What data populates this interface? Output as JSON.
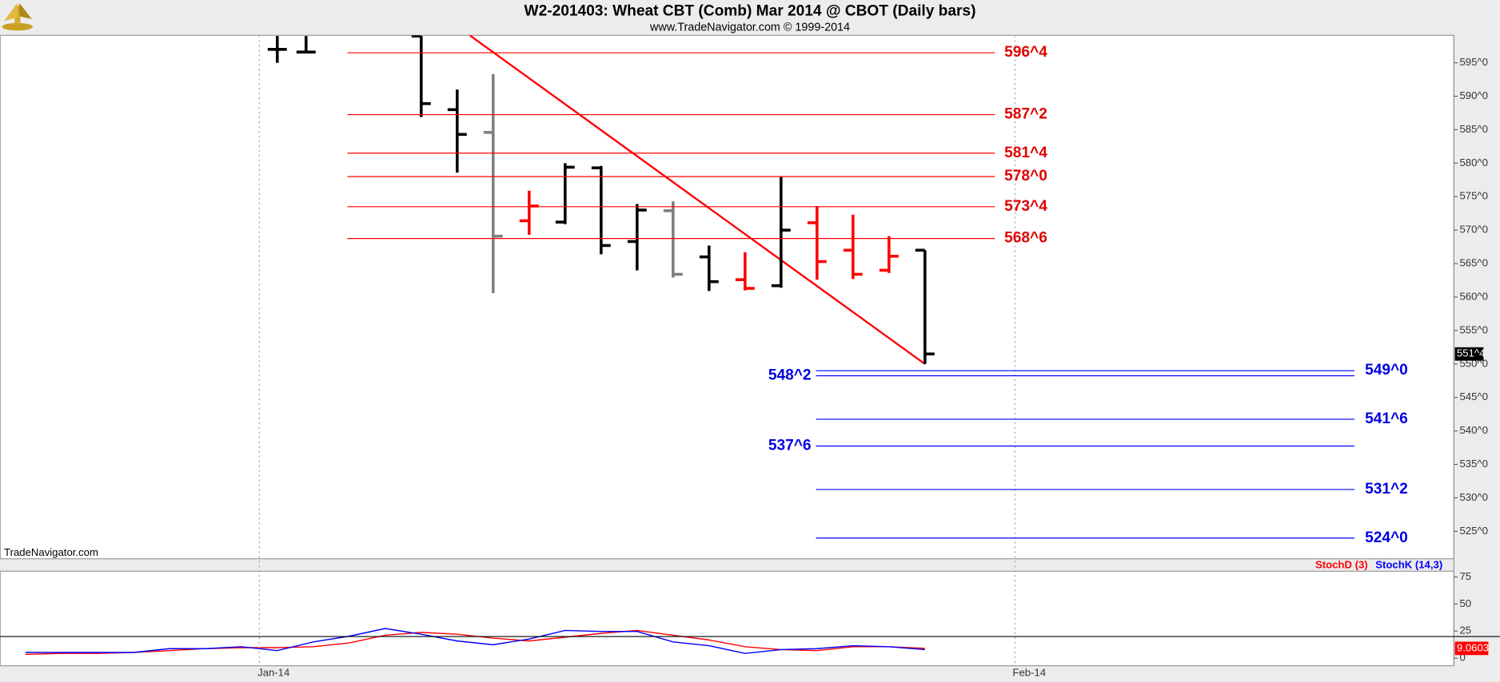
{
  "chart_data": [
    {
      "type": "ohlc",
      "title": "W2-201403:  Wheat CBT (Comb) Mar 2014 @ CBOT  (Daily bars)",
      "subtitle": "www.TradeNavigator.com © 1999-2014",
      "annotation": "TradeNavigator.com",
      "x": [
        0.5,
        1.3,
        4.5,
        5.5,
        6.5,
        7.5,
        8.5,
        9.5,
        10.5,
        11.5,
        12.5,
        13.5,
        14.5,
        15.5,
        16.5,
        17.5,
        18.5
      ],
      "open": [
        597.0,
        596.6,
        599.0,
        588.0,
        584.6,
        571.4,
        571.2,
        579.3,
        568.3,
        572.9,
        566.0,
        562.6,
        561.7,
        571.1,
        567.0,
        564.0,
        567.0
      ],
      "high": [
        599.0,
        599.0,
        599.0,
        591.0,
        593.3,
        575.9,
        580.0,
        579.6,
        573.9,
        574.3,
        567.7,
        566.7,
        578.0,
        573.6,
        572.3,
        569.1,
        567.0
      ],
      "low": [
        595.0,
        596.6,
        586.9,
        578.6,
        560.6,
        569.3,
        570.9,
        566.4,
        564.0,
        562.9,
        560.9,
        561.0,
        561.4,
        562.6,
        562.7,
        563.6,
        550.0
      ],
      "close": [
        597.0,
        596.6,
        588.9,
        584.3,
        569.1,
        573.6,
        579.4,
        567.7,
        573.0,
        563.4,
        562.3,
        561.3,
        570.0,
        565.3,
        563.4,
        566.1,
        551.5
      ],
      "colors": [
        "#000000",
        "#000000",
        "#000000",
        "#000000",
        "#808080",
        "#ff0000",
        "#000000",
        "#000000",
        "#000000",
        "#808080",
        "#000000",
        "#ff0000",
        "#000000",
        "#ff0000",
        "#ff0000",
        "#ff0000",
        "#000000"
      ],
      "last_value": 551.5,
      "last_value_label": "551^4",
      "xlim": [
        -7.2,
        33.2
      ],
      "xticks": [
        {
          "value": 0,
          "label": "Jan-14"
        },
        {
          "value": 21,
          "label": "Feb-14"
        }
      ],
      "ylim": [
        520.9,
        599.1
      ],
      "yticks": [
        {
          "value": 595,
          "label": "595^0"
        },
        {
          "value": 590,
          "label": "590^0"
        },
        {
          "value": 585,
          "label": "585^0"
        },
        {
          "value": 580,
          "label": "580^0"
        },
        {
          "value": 575,
          "label": "575^0"
        },
        {
          "value": 570,
          "label": "570^0"
        },
        {
          "value": 565,
          "label": "565^0"
        },
        {
          "value": 560,
          "label": "560^0"
        },
        {
          "value": 555,
          "label": "555^0"
        },
        {
          "value": 550,
          "label": "550^0"
        },
        {
          "value": 545,
          "label": "545^0"
        },
        {
          "value": 540,
          "label": "540^0"
        },
        {
          "value": 535,
          "label": "535^0"
        },
        {
          "value": 530,
          "label": "530^0"
        },
        {
          "value": 525,
          "label": "525^0"
        }
      ],
      "resistance": {
        "color": "#ff0000",
        "values": [
          596.5,
          587.25,
          581.5,
          578.0,
          573.5,
          568.75
        ],
        "value_labels": [
          "596^4",
          "587^2",
          "581^4",
          "578^0",
          "573^4",
          "568^6"
        ]
      },
      "support": {
        "color": "#0000ff",
        "values": [
          549.0,
          548.25,
          541.75,
          537.75,
          531.25,
          524.0
        ],
        "value_labels": [
          "549^0",
          "548^2",
          "541^6",
          "537^6",
          "531^2",
          "524^0"
        ]
      },
      "trendline": {
        "color": "#ff0000",
        "x": [
          5.85,
          18.5
        ],
        "values": [
          599.1,
          550.0
        ]
      }
    },
    {
      "type": "line",
      "x": [
        -6.5,
        -5.5,
        -4.5,
        -3.5,
        -2.5,
        -1.5,
        -0.5,
        0.5,
        1.5,
        2.5,
        3.5,
        4.5,
        5.5,
        6.5,
        7.5,
        8.5,
        9.5,
        10.5,
        11.5,
        12.5,
        13.5,
        14.5,
        15.5,
        16.5,
        17.5,
        18.5
      ],
      "series": [
        {
          "name": "StochD (3)",
          "color": "#ff0000",
          "values": [
            3.5,
            4.4,
            4.4,
            5.3,
            7,
            8.8,
            9.7,
            9.7,
            10.6,
            14.1,
            21.2,
            23.8,
            22.1,
            18.5,
            15.9,
            19.4,
            22.9,
            25.6,
            21.2,
            16.8,
            10.6,
            7.9,
            7,
            10.6,
            10.6,
            9.0603
          ]
        },
        {
          "name": "StochK (14,3)",
          "color": "#0000ff",
          "values": [
            5.3,
            5.3,
            5.3,
            5.3,
            8.8,
            8.8,
            10.6,
            7,
            15,
            20.3,
            27.4,
            22.1,
            15.9,
            12.4,
            17.7,
            25.6,
            24.7,
            24.7,
            15,
            11.5,
            4.4,
            7.9,
            8.8,
            11.5,
            10.6,
            7.9
          ]
        }
      ],
      "last_value": 9.0603,
      "reference_line": 20,
      "xlim": [
        -7.2,
        33.2
      ],
      "ylim": [
        -7,
        80.3
      ],
      "yticks": [
        75,
        50,
        25,
        0
      ]
    }
  ]
}
